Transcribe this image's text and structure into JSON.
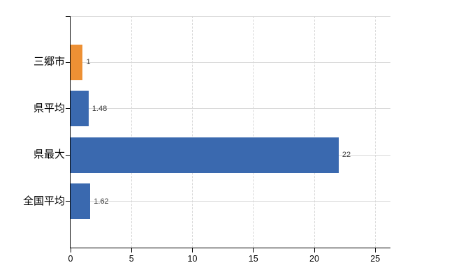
{
  "chart_data": {
    "type": "bar",
    "orientation": "horizontal",
    "title": "",
    "xlabel": "",
    "ylabel": "",
    "categories": [
      "三郷市",
      "県平均",
      "県最大",
      "全国平均"
    ],
    "values": [
      1,
      1.48,
      22,
      1.62
    ],
    "value_labels": [
      "1",
      "1.48",
      "22",
      "1.62"
    ],
    "bar_colors": [
      "#ED9034",
      "#3A69AF",
      "#3A69AF",
      "#3A69AF"
    ],
    "x_ticks": [
      "0",
      "5",
      "10",
      "15",
      "20",
      "25"
    ],
    "x_tick_values": [
      0,
      5,
      10,
      15,
      20,
      25
    ],
    "xlim": [
      0,
      26.25
    ],
    "grid": true,
    "legend": false,
    "colors": {
      "highlight_bar": "#ED9034",
      "default_bar": "#3A69AF",
      "grid": "#D8D8D8",
      "axis": "#000000",
      "value_label": "#3C3C3C",
      "background": "#FFFFFF"
    }
  }
}
